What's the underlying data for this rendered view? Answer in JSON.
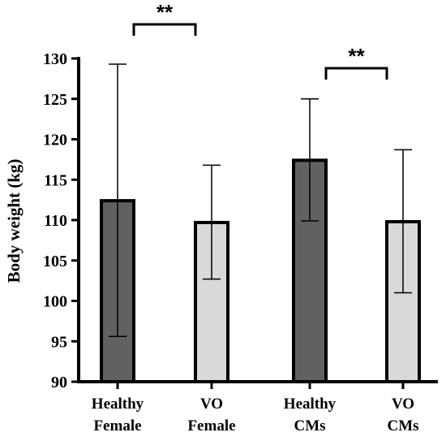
{
  "chart_data": {
    "type": "bar",
    "categories": [
      [
        "Healthy",
        "Female"
      ],
      [
        "VO",
        "Female"
      ],
      [
        "Healthy",
        "CMs"
      ],
      [
        "VO",
        "CMs"
      ]
    ],
    "values": [
      112.4,
      109.7,
      117.4,
      109.8
    ],
    "error_low": [
      95.6,
      102.7,
      109.9,
      101.0
    ],
    "error_high": [
      129.3,
      116.8,
      125.0,
      118.7
    ],
    "bar_colors": [
      "#616161",
      "#d9d9d9",
      "#616161",
      "#d9d9d9"
    ],
    "ylabel": "Body weight (kg)",
    "xlabel": "",
    "ylim": [
      90,
      130
    ],
    "yticks": [
      90,
      95,
      100,
      105,
      110,
      115,
      120,
      125,
      130
    ],
    "grid": false,
    "significance": [
      {
        "from": 0,
        "to": 1,
        "label": "**"
      },
      {
        "from": 2,
        "to": 3,
        "label": "**"
      }
    ]
  }
}
